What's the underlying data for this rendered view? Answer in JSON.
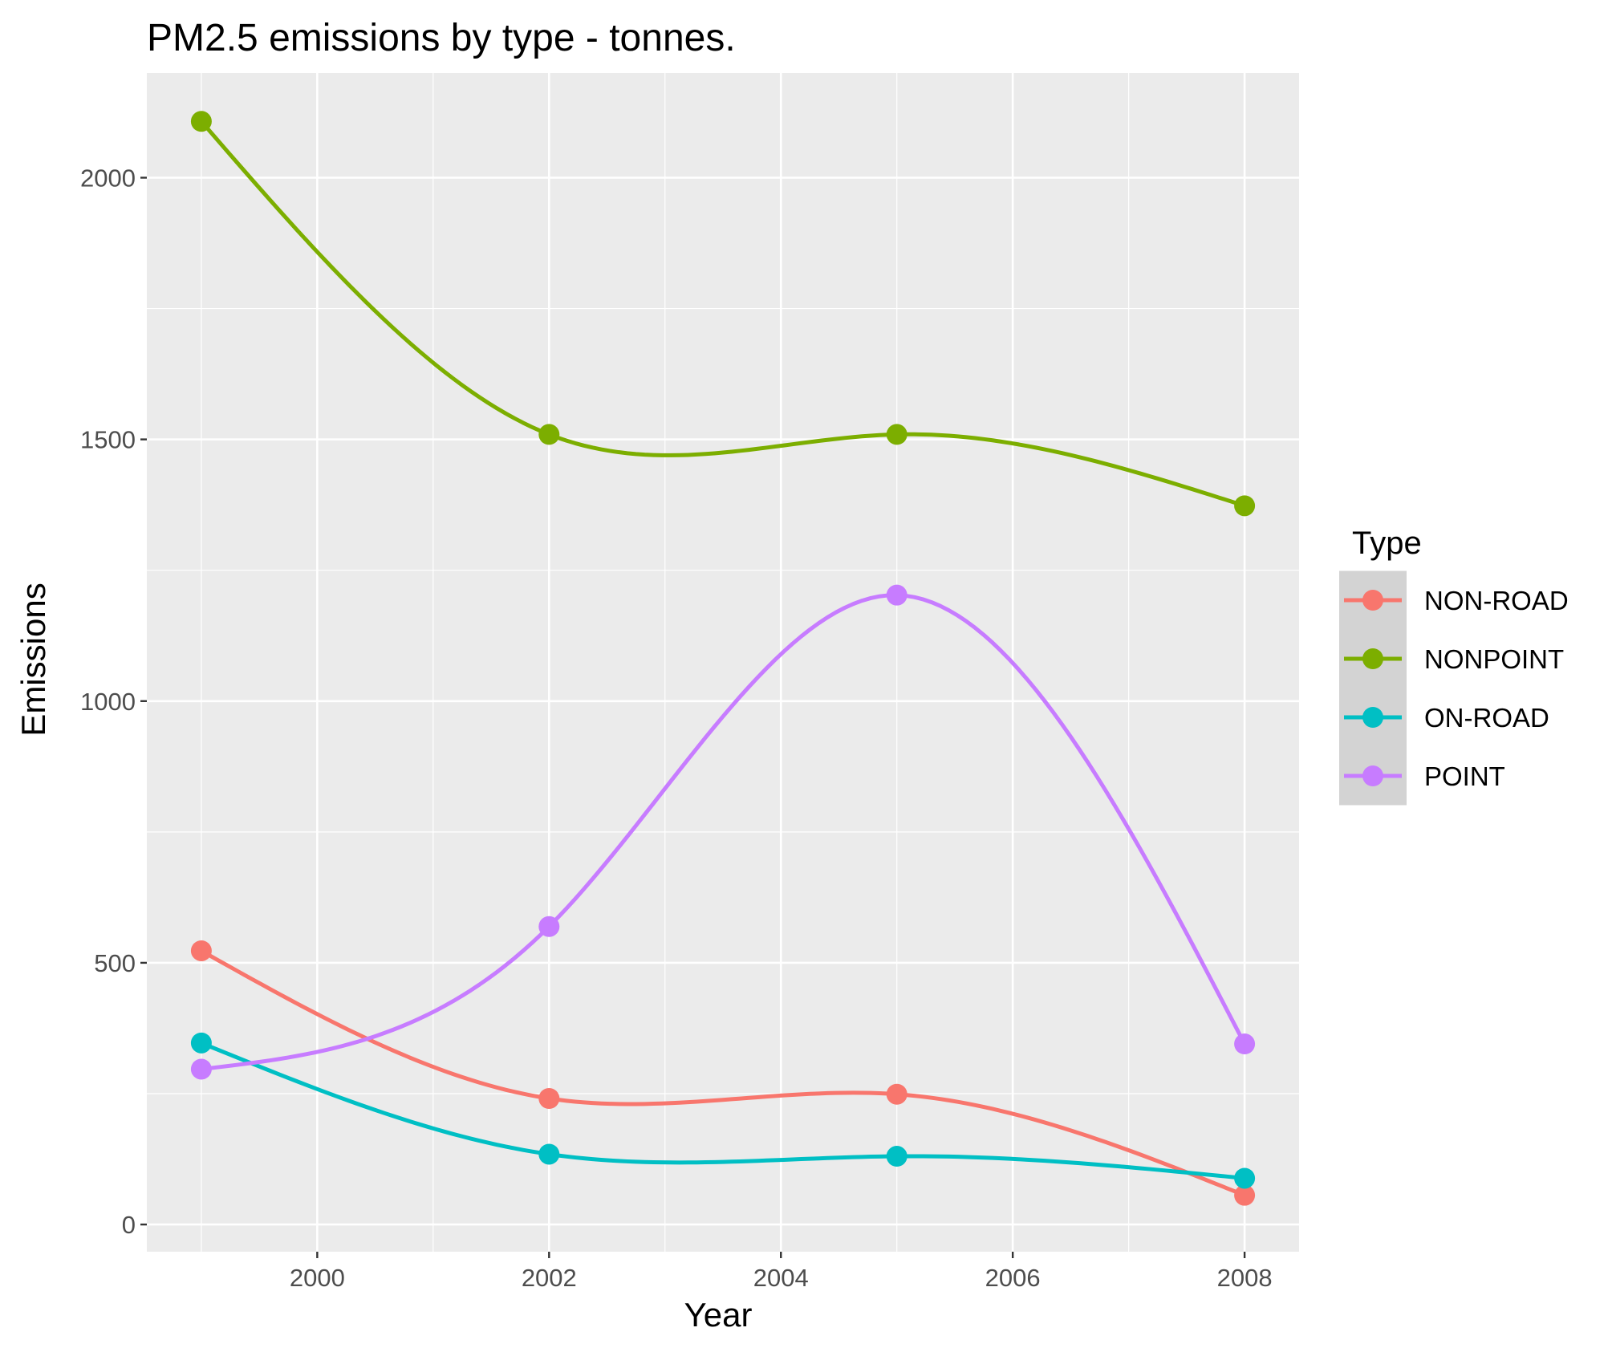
{
  "chart_data": {
    "type": "line",
    "title": "PM2.5 emissions by type - tonnes.",
    "xlabel": "Year",
    "ylabel": "Emissions",
    "x": [
      1999,
      2002,
      2005,
      2008
    ],
    "xlim": [
      1998.53,
      2008.47
    ],
    "ylim": [
      -52,
      2200
    ],
    "xticks": [
      2000,
      2002,
      2004,
      2006,
      2008
    ],
    "yticks": [
      0,
      500,
      1000,
      1500,
      2000
    ],
    "grid": true,
    "smooth": true,
    "legend": {
      "title": "Type",
      "position": "right"
    },
    "series": [
      {
        "name": "NON-ROAD",
        "color": "#F8766D",
        "values": [
          522.9,
          240.8,
          248.9,
          55.8
        ]
      },
      {
        "name": "NONPOINT",
        "color": "#7CAE00",
        "values": [
          2107.6,
          1509.5,
          1509.5,
          1373.2
        ]
      },
      {
        "name": "ON-ROAD",
        "color": "#00BFC4",
        "values": [
          346.8,
          134.3,
          130.4,
          88.3
        ]
      },
      {
        "name": "POINT",
        "color": "#C77CFF",
        "values": [
          296.8,
          569.3,
          1202.5,
          344.98
        ]
      }
    ]
  }
}
